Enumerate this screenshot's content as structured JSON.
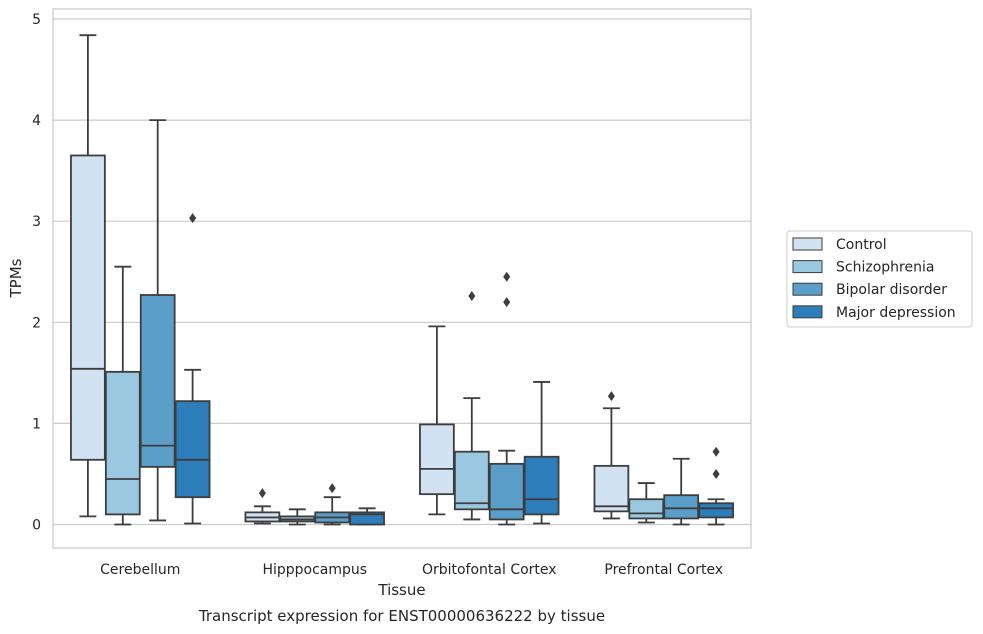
{
  "chart_data": {
    "type": "box",
    "caption": "Transcript expression for ENST00000636222 by tissue",
    "xlabel": "Tissue",
    "ylabel": "TPMs",
    "ylim": [
      -0.23,
      5.08
    ],
    "yticks": [
      0,
      1,
      2,
      3,
      4,
      5
    ],
    "grid": "horizontal",
    "legend_position": "right",
    "categories": [
      "Cerebellum",
      "Hipppocampus",
      "Orbitofontal Cortex",
      "Prefrontal Cortex"
    ],
    "series": [
      {
        "name": "Control",
        "color": "#d1e2f2",
        "boxes": [
          {
            "whisker_low": 0.08,
            "q1": 0.64,
            "median": 1.54,
            "q3": 3.65,
            "whisker_high": 4.84,
            "outliers": []
          },
          {
            "whisker_low": 0.01,
            "q1": 0.03,
            "median": 0.07,
            "q3": 0.12,
            "whisker_high": 0.18,
            "outliers": [
              0.31
            ]
          },
          {
            "whisker_low": 0.1,
            "q1": 0.3,
            "median": 0.55,
            "q3": 0.99,
            "whisker_high": 1.96,
            "outliers": []
          },
          {
            "whisker_low": 0.06,
            "q1": 0.13,
            "median": 0.18,
            "q3": 0.58,
            "whisker_high": 1.15,
            "outliers": [
              1.27
            ]
          }
        ]
      },
      {
        "name": "Schizophrenia",
        "color": "#9ac8e0",
        "boxes": [
          {
            "whisker_low": 0.0,
            "q1": 0.1,
            "median": 0.45,
            "q3": 1.51,
            "whisker_high": 2.55,
            "outliers": []
          },
          {
            "whisker_low": 0.0,
            "q1": 0.03,
            "median": 0.05,
            "q3": 0.08,
            "whisker_high": 0.15,
            "outliers": []
          },
          {
            "whisker_low": 0.05,
            "q1": 0.15,
            "median": 0.21,
            "q3": 0.72,
            "whisker_high": 1.25,
            "outliers": [
              2.26
            ]
          },
          {
            "whisker_low": 0.02,
            "q1": 0.06,
            "median": 0.11,
            "q3": 0.25,
            "whisker_high": 0.41,
            "outliers": []
          }
        ]
      },
      {
        "name": "Bipolar disorder",
        "color": "#5a9ec9",
        "boxes": [
          {
            "whisker_low": 0.04,
            "q1": 0.57,
            "median": 0.78,
            "q3": 2.27,
            "whisker_high": 4.0,
            "outliers": []
          },
          {
            "whisker_low": 0.0,
            "q1": 0.02,
            "median": 0.07,
            "q3": 0.12,
            "whisker_high": 0.27,
            "outliers": [
              0.36
            ]
          },
          {
            "whisker_low": 0.0,
            "q1": 0.05,
            "median": 0.15,
            "q3": 0.6,
            "whisker_high": 0.73,
            "outliers": [
              2.2,
              2.45
            ]
          },
          {
            "whisker_low": 0.0,
            "q1": 0.06,
            "median": 0.16,
            "q3": 0.29,
            "whisker_high": 0.65,
            "outliers": []
          }
        ]
      },
      {
        "name": "Major depression",
        "color": "#2d7dbb",
        "boxes": [
          {
            "whisker_low": 0.01,
            "q1": 0.27,
            "median": 0.64,
            "q3": 1.22,
            "whisker_high": 1.53,
            "outliers": [
              3.03
            ]
          },
          {
            "whisker_low": 0.0,
            "q1": 0.0,
            "median": 0.1,
            "q3": 0.12,
            "whisker_high": 0.16,
            "outliers": []
          },
          {
            "whisker_low": 0.01,
            "q1": 0.1,
            "median": 0.25,
            "q3": 0.67,
            "whisker_high": 1.41,
            "outliers": []
          },
          {
            "whisker_low": 0.0,
            "q1": 0.07,
            "median": 0.16,
            "q3": 0.21,
            "whisker_high": 0.25,
            "outliers": [
              0.5,
              0.72
            ]
          }
        ]
      }
    ]
  }
}
